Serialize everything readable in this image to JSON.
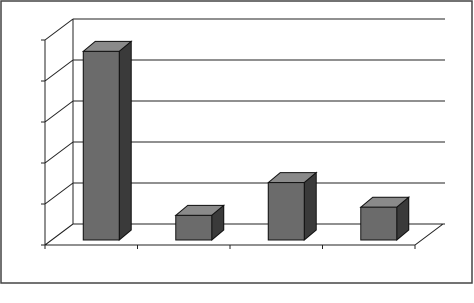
{
  "chart_data": {
    "type": "bar3d",
    "categories": [
      null,
      null,
      null,
      null
    ],
    "values": [
      4.6,
      0.6,
      1.4,
      0.8
    ],
    "color": "#6b6b6b",
    "ylim": [
      0,
      5
    ],
    "yticks": [
      0,
      1,
      2,
      3,
      4,
      5
    ],
    "grid": true
  }
}
